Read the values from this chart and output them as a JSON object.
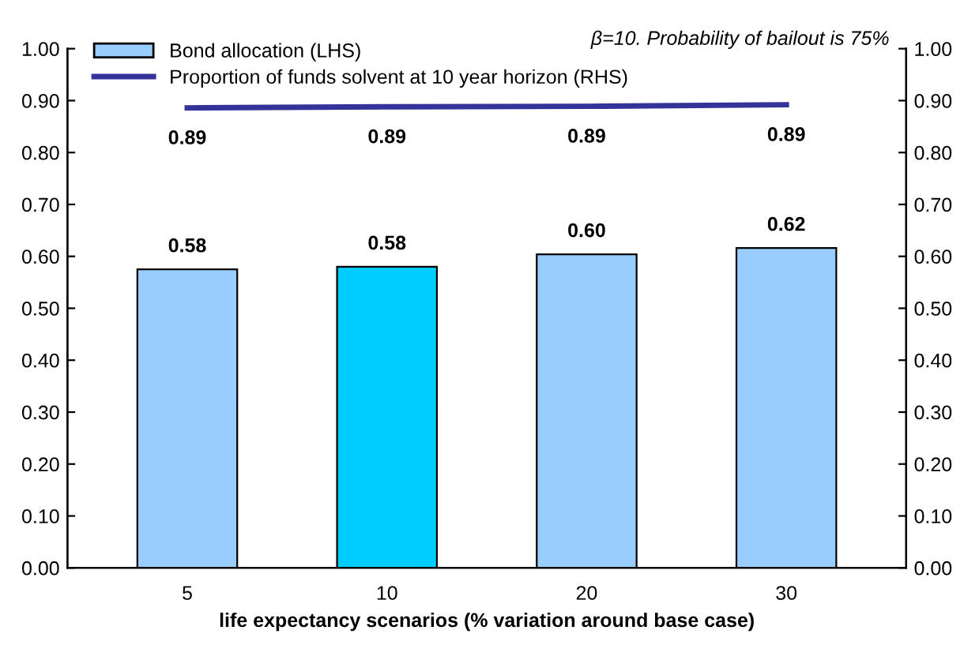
{
  "chart_data": {
    "type": "bar",
    "xlabel": "life expectancy scenarios (% variation around base case)",
    "categories": [
      "5",
      "10",
      "20",
      "30"
    ],
    "series": [
      {
        "name": "Bond allocation (LHS)",
        "colors": [
          "#99ccff",
          "#00ccff",
          "#99ccff",
          "#99ccff"
        ],
        "values": [
          0.575,
          0.58,
          0.604,
          0.616
        ],
        "value_labels": [
          "0.58",
          "0.58",
          "0.60",
          "0.62"
        ]
      },
      {
        "name": "Proportion of funds solvent at 10 year horizon (RHS)",
        "type": "line",
        "axis": "y2",
        "color": "#333399",
        "values": [
          0.886,
          0.888,
          0.889,
          0.892
        ],
        "value_labels": [
          "0.89",
          "0.89",
          "0.89",
          "0.89"
        ]
      }
    ],
    "ylim": [
      0,
      1
    ],
    "yticks": [
      {
        "value": 0,
        "label": "0.00"
      },
      {
        "value": 0.1,
        "label": "0.10"
      },
      {
        "value": 0.2,
        "label": "0.20"
      },
      {
        "value": 0.3,
        "label": "0.30"
      },
      {
        "value": 0.4,
        "label": "0.40"
      },
      {
        "value": 0.5,
        "label": "0.50"
      },
      {
        "value": 0.6,
        "label": "0.60"
      },
      {
        "value": 0.7,
        "label": "0.70"
      },
      {
        "value": 0.8,
        "label": "0.80"
      },
      {
        "value": 0.9,
        "label": "0.90"
      },
      {
        "value": 1,
        "label": "1.00"
      }
    ],
    "y2lim": [
      0,
      1
    ],
    "y2ticks": [
      {
        "value": 0,
        "label": "0.00"
      },
      {
        "value": 0.1,
        "label": "0.10"
      },
      {
        "value": 0.2,
        "label": "0.20"
      },
      {
        "value": 0.3,
        "label": "0.30"
      },
      {
        "value": 0.4,
        "label": "0.40"
      },
      {
        "value": 0.5,
        "label": "0.50"
      },
      {
        "value": 0.6,
        "label": "0.60"
      },
      {
        "value": 0.7,
        "label": "0.70"
      },
      {
        "value": 0.8,
        "label": "0.80"
      },
      {
        "value": 0.9,
        "label": "0.90"
      },
      {
        "value": 1,
        "label": "1.00"
      }
    ],
    "annotations": [
      "β=10. Probability of bailout is 75%"
    ],
    "legend": "top left",
    "grid": false,
    "marker": "none",
    "line_style": "solid"
  }
}
